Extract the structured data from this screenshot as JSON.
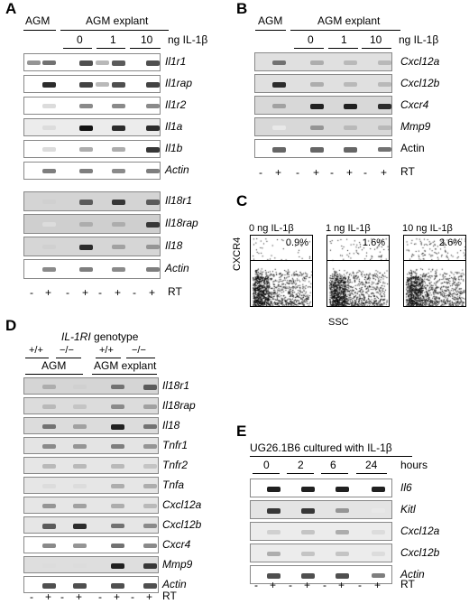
{
  "panels": {
    "A": {
      "label": "A",
      "header_left": "AGM",
      "header_right": "AGM explant",
      "doses": [
        "0",
        "1",
        "10"
      ],
      "dose_unit": "ng IL-1β",
      "genes_top": [
        "Il1r1",
        "Il1rap",
        "Il1r2",
        "Il1a",
        "Il1b",
        "Actin"
      ],
      "genes_bottom": [
        "Il18r1",
        "Il18rap",
        "Il18",
        "Actin"
      ],
      "rt_signs": [
        "-",
        "+",
        "-",
        "+",
        "-",
        "+",
        "-",
        "+"
      ],
      "rt_label": "RT"
    },
    "B": {
      "label": "B",
      "header_left": "AGM",
      "header_right": "AGM explant",
      "doses": [
        "0",
        "1",
        "10"
      ],
      "dose_unit": "ng IL-1β",
      "genes": [
        "Cxcl12a",
        "Cxcl12b",
        "Cxcr4",
        "Mmp9",
        "Actin"
      ],
      "rt_signs": [
        "-",
        "+",
        "-",
        "+",
        "-",
        "+",
        "-",
        "+"
      ],
      "rt_label": "RT"
    },
    "C": {
      "label": "C",
      "plots": [
        {
          "title": "0 ng IL-1β",
          "percent": "0.9%"
        },
        {
          "title": "1 ng IL-1β",
          "percent": "1.6%"
        },
        {
          "title": "10 ng IL-1β",
          "percent": "2.6%"
        }
      ],
      "ylabel": "CXCR4",
      "xlabel": "SSC"
    },
    "D": {
      "label": "D",
      "genotype_prefix": "IL-1RI",
      "genotype_suffix": "genotype",
      "genotypes": [
        "+/+",
        "−/−",
        "+/+",
        "−/−"
      ],
      "header_left": "AGM",
      "header_right": "AGM explant",
      "genes": [
        "Il18r1",
        "Il18rap",
        "Il18",
        "Tnfr1",
        "Tnfr2",
        "Tnfa",
        "Cxcl12a",
        "Cxcl12b",
        "Cxcr4",
        "Mmp9",
        "Actin"
      ],
      "rt_signs": [
        "-",
        "+",
        "-",
        "+",
        "-",
        "+",
        "-",
        "+"
      ],
      "rt_label": "RT"
    },
    "E": {
      "label": "E",
      "title": "UG26.1B6 cultured with IL-1β",
      "times": [
        "0",
        "2",
        "6",
        "24"
      ],
      "time_unit": "hours",
      "genes": [
        "Il6",
        "Kitl",
        "Cxcl12a",
        "Cxcl12b",
        "Actin"
      ],
      "rt_signs": [
        "-",
        "+",
        "-",
        "+",
        "-",
        "+",
        "-",
        "+"
      ],
      "rt_label": "RT"
    }
  }
}
